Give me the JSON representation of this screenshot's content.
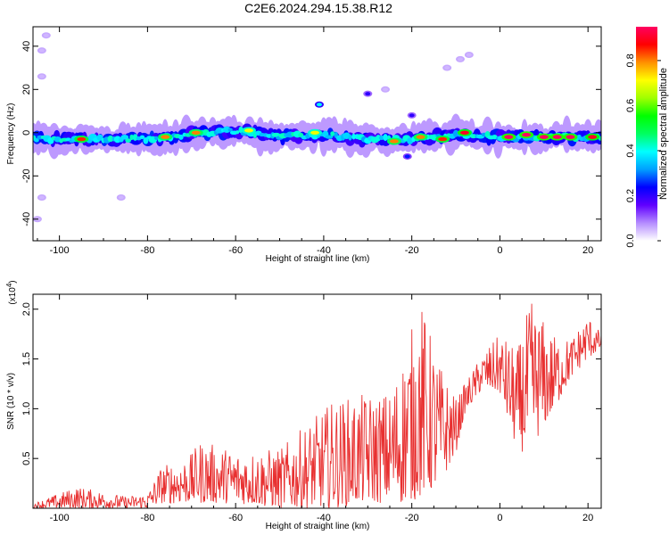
{
  "title": "C2E6.2024.294.15.38.R12",
  "chart_data": [
    {
      "type": "heatmap",
      "name": "spectrogram",
      "xlabel": "Height of straight line (km)",
      "ylabel": "Frequency (Hz)",
      "xlim": [
        -106,
        23
      ],
      "ylim": [
        -50,
        49
      ],
      "xticks": [
        -100,
        -80,
        -60,
        -40,
        -20,
        0,
        20
      ],
      "yticks": [
        -40,
        -20,
        0,
        20,
        40
      ],
      "band_center_hz": [
        {
          "x": -106,
          "y": -3
        },
        {
          "x": -90,
          "y": -3
        },
        {
          "x": -80,
          "y": -3
        },
        {
          "x": -70,
          "y": -1
        },
        {
          "x": -60,
          "y": 1
        },
        {
          "x": -50,
          "y": -2
        },
        {
          "x": -40,
          "y": -1
        },
        {
          "x": -30,
          "y": -3
        },
        {
          "x": -20,
          "y": -3
        },
        {
          "x": -10,
          "y": -1
        },
        {
          "x": 0,
          "y": -2
        },
        {
          "x": 10,
          "y": -2
        },
        {
          "x": 23,
          "y": -2
        }
      ],
      "band_halfwidth_hz": 5,
      "strong_returns": [
        {
          "x": -95,
          "y": -3,
          "amplitude": 0.85
        },
        {
          "x": -76,
          "y": -2,
          "amplitude": 0.8
        },
        {
          "x": -69,
          "y": 0,
          "amplitude": 0.8
        },
        {
          "x": -57,
          "y": 1,
          "amplitude": 0.7
        },
        {
          "x": -42,
          "y": 0,
          "amplitude": 0.7
        },
        {
          "x": -24,
          "y": -4,
          "amplitude": 0.8
        },
        {
          "x": -18,
          "y": -2,
          "amplitude": 0.8
        },
        {
          "x": -13,
          "y": -3,
          "amplitude": 0.85
        },
        {
          "x": -8,
          "y": 0,
          "amplitude": 0.9
        },
        {
          "x": 2,
          "y": -2,
          "amplitude": 0.95
        },
        {
          "x": 6,
          "y": -1,
          "amplitude": 0.95
        },
        {
          "x": 10,
          "y": -2,
          "amplitude": 0.95
        },
        {
          "x": 13,
          "y": -2,
          "amplitude": 0.95
        },
        {
          "x": 16,
          "y": -2,
          "amplitude": 0.95
        },
        {
          "x": 21,
          "y": -2,
          "amplitude": 0.9
        }
      ],
      "isolated_returns": [
        {
          "x": -41,
          "y": 13,
          "amplitude": 0.4
        },
        {
          "x": -30,
          "y": 18,
          "amplitude": 0.2
        },
        {
          "x": -26,
          "y": 20,
          "amplitude": 0.05
        },
        {
          "x": -20,
          "y": 8,
          "amplitude": 0.2
        },
        {
          "x": -21,
          "y": -11,
          "amplitude": 0.25
        },
        {
          "x": -12,
          "y": 30,
          "amplitude": 0.05
        },
        {
          "x": -9,
          "y": 34,
          "amplitude": 0.05
        },
        {
          "x": -7,
          "y": 36,
          "amplitude": 0.05
        },
        {
          "x": -103,
          "y": 45,
          "amplitude": 0.05
        },
        {
          "x": -104,
          "y": 38,
          "amplitude": 0.05
        },
        {
          "x": -104,
          "y": 26,
          "amplitude": 0.05
        },
        {
          "x": -105,
          "y": -40,
          "amplitude": 0.05
        },
        {
          "x": -104,
          "y": -30,
          "amplitude": 0.05
        },
        {
          "x": -86,
          "y": -30,
          "amplitude": 0.05
        }
      ],
      "colorbar": {
        "label": "Normalized spectral amplitude",
        "range": [
          0,
          0.95
        ],
        "ticks": [
          "0.0",
          "0.2",
          "0.4",
          "0.6",
          "0.8"
        ],
        "tick_values": [
          0,
          0.2,
          0.4,
          0.6,
          0.8
        ],
        "colors": [
          "#ffffff",
          "#b48cff",
          "#6000ff",
          "#0000ff",
          "#00a0ff",
          "#00ffff",
          "#00ff60",
          "#00ff00",
          "#a0ff00",
          "#ffff00",
          "#ff9000",
          "#ff0000",
          "#ff0060"
        ]
      }
    },
    {
      "type": "line",
      "name": "snr",
      "xlabel": "Height of straight line (km)",
      "ylabel": "SNR (10 * v/v)",
      "y_multiplier": "(x10",
      "y_multiplier_exp": "4",
      "y_multiplier_close": ")",
      "xlim": [
        -106,
        23
      ],
      "ylim": [
        0,
        2.15
      ],
      "xticks": [
        -100,
        -80,
        -60,
        -40,
        -20,
        0,
        20
      ],
      "yticks": [
        0.5,
        1.0,
        1.5,
        2.0
      ],
      "ytick_labels": [
        "0.5",
        "1.0",
        "1.5",
        "2.0"
      ],
      "series": [
        {
          "name": "SNR",
          "color": "#e83030",
          "envelope": [
            {
              "x": -106,
              "lo": 0.0,
              "hi": 0.05
            },
            {
              "x": -96,
              "lo": 0.0,
              "hi": 0.22
            },
            {
              "x": -85,
              "lo": 0.0,
              "hi": 0.12
            },
            {
              "x": -80,
              "lo": 0.0,
              "hi": 0.15
            },
            {
              "x": -77,
              "lo": 0.05,
              "hi": 0.42
            },
            {
              "x": -70,
              "lo": 0.05,
              "hi": 0.55
            },
            {
              "x": -68,
              "lo": 0.05,
              "hi": 0.68
            },
            {
              "x": -60,
              "lo": 0.05,
              "hi": 0.58
            },
            {
              "x": -50,
              "lo": 0.0,
              "hi": 0.6
            },
            {
              "x": -45,
              "lo": 0.0,
              "hi": 0.8
            },
            {
              "x": -38,
              "lo": 0.0,
              "hi": 1.08
            },
            {
              "x": -30,
              "lo": 0.05,
              "hi": 1.15
            },
            {
              "x": -25,
              "lo": 0.05,
              "hi": 1.18
            },
            {
              "x": -22,
              "lo": 0.05,
              "hi": 1.55
            },
            {
              "x": -18,
              "lo": 0.1,
              "hi": 2.1
            },
            {
              "x": -14,
              "lo": 0.2,
              "hi": 1.5
            },
            {
              "x": -10,
              "lo": 0.55,
              "hi": 1.1
            },
            {
              "x": -8,
              "lo": 0.95,
              "hi": 1.25
            },
            {
              "x": -4,
              "lo": 1.2,
              "hi": 1.55
            },
            {
              "x": 0,
              "lo": 1.15,
              "hi": 1.75
            },
            {
              "x": 4,
              "lo": 0.55,
              "hi": 1.6
            },
            {
              "x": 7,
              "lo": 0.6,
              "hi": 2.1
            },
            {
              "x": 12,
              "lo": 0.95,
              "hi": 1.75
            },
            {
              "x": 16,
              "lo": 1.3,
              "hi": 1.7
            },
            {
              "x": 20,
              "lo": 1.5,
              "hi": 1.95
            },
            {
              "x": 23,
              "lo": 1.6,
              "hi": 1.75
            }
          ]
        }
      ]
    }
  ]
}
